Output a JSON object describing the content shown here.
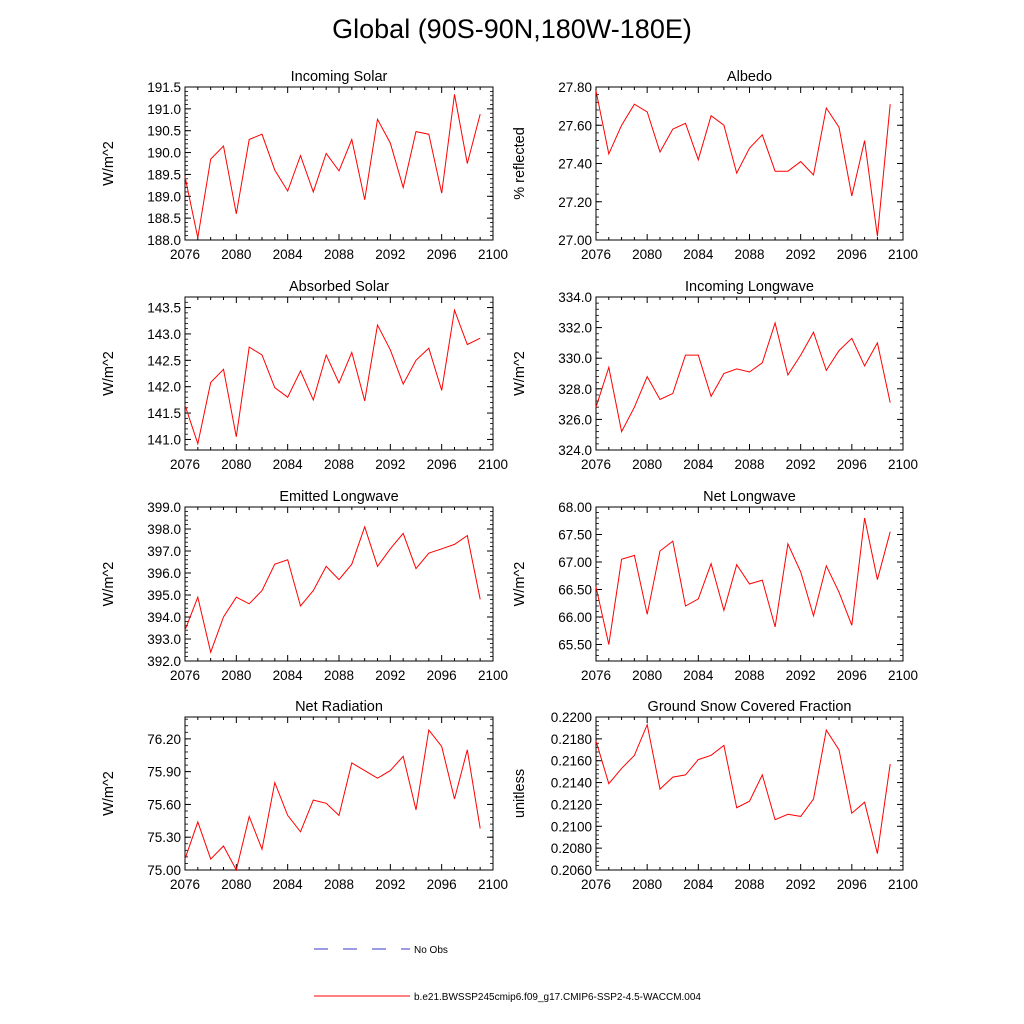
{
  "figure_title": "Global (90S-90N,180W-180E)",
  "legend": {
    "obs_label": "No Obs",
    "obs_color": "#3a3acb",
    "model_label": "b.e21.BWSSP245cmip6.f09_g17.CMIP6-SSP2-4.5-WACCM.004",
    "model_color": "#ff0000"
  },
  "chart_data": [
    {
      "type": "line",
      "title": "Incoming Solar",
      "xlabel": "",
      "ylabel": "W/m^2",
      "xlim": [
        2076,
        2100
      ],
      "ylim": [
        188.0,
        191.5
      ],
      "xticks": [
        2076,
        2080,
        2084,
        2088,
        2092,
        2096,
        2100
      ],
      "yticks": [
        188.0,
        188.5,
        189.0,
        189.5,
        190.0,
        190.5,
        191.0,
        191.5
      ],
      "ytick_labels": [
        "188.0",
        "188.5",
        "189.0",
        "189.5",
        "190.0",
        "190.5",
        "191.0",
        "191.5"
      ],
      "x": [
        2076,
        2077,
        2078,
        2079,
        2080,
        2081,
        2082,
        2083,
        2084,
        2085,
        2086,
        2087,
        2088,
        2089,
        2090,
        2091,
        2092,
        2093,
        2094,
        2095,
        2096,
        2097,
        2098,
        2099
      ],
      "series": [
        {
          "name": "b.e21.BWSSP245cmip6.f09_g17.CMIP6-SSP2-4.5-WACCM.004",
          "color": "#ff0000",
          "values": [
            189.45,
            188.05,
            189.85,
            190.15,
            188.6,
            190.3,
            190.42,
            189.6,
            189.12,
            189.93,
            189.1,
            189.98,
            189.58,
            190.3,
            188.92,
            190.76,
            190.22,
            189.2,
            190.48,
            190.42,
            189.07,
            191.33,
            189.75,
            190.88
          ]
        }
      ]
    },
    {
      "type": "line",
      "title": "Albedo",
      "xlabel": "",
      "ylabel": "% reflected",
      "xlim": [
        2076,
        2100
      ],
      "ylim": [
        27.0,
        27.8
      ],
      "xticks": [
        2076,
        2080,
        2084,
        2088,
        2092,
        2096,
        2100
      ],
      "yticks": [
        27.0,
        27.2,
        27.4,
        27.6,
        27.8
      ],
      "ytick_labels": [
        "27.00",
        "27.20",
        "27.40",
        "27.60",
        "27.80"
      ],
      "x": [
        2076,
        2077,
        2078,
        2079,
        2080,
        2081,
        2082,
        2083,
        2084,
        2085,
        2086,
        2087,
        2088,
        2089,
        2090,
        2091,
        2092,
        2093,
        2094,
        2095,
        2096,
        2097,
        2098,
        2099
      ],
      "series": [
        {
          "name": "b.e21.BWSSP245cmip6.f09_g17.CMIP6-SSP2-4.5-WACCM.004",
          "color": "#ff0000",
          "values": [
            27.78,
            27.45,
            27.6,
            27.71,
            27.67,
            27.46,
            27.58,
            27.61,
            27.42,
            27.65,
            27.6,
            27.35,
            27.48,
            27.55,
            27.36,
            27.36,
            27.41,
            27.34,
            27.69,
            27.59,
            27.23,
            27.52,
            27.02,
            27.71
          ]
        }
      ]
    },
    {
      "type": "line",
      "title": "Absorbed Solar",
      "xlabel": "",
      "ylabel": "W/m^2",
      "xlim": [
        2076,
        2100
      ],
      "ylim": [
        140.8,
        143.7
      ],
      "xticks": [
        2076,
        2080,
        2084,
        2088,
        2092,
        2096,
        2100
      ],
      "yticks": [
        141.0,
        141.5,
        142.0,
        142.5,
        143.0,
        143.5
      ],
      "ytick_labels": [
        "141.0",
        "141.5",
        "142.0",
        "142.5",
        "143.0",
        "143.5"
      ],
      "x": [
        2076,
        2077,
        2078,
        2079,
        2080,
        2081,
        2082,
        2083,
        2084,
        2085,
        2086,
        2087,
        2088,
        2089,
        2090,
        2091,
        2092,
        2093,
        2094,
        2095,
        2096,
        2097,
        2098,
        2099
      ],
      "series": [
        {
          "name": "b.e21.BWSSP245cmip6.f09_g17.CMIP6-SSP2-4.5-WACCM.004",
          "color": "#ff0000",
          "values": [
            141.65,
            140.92,
            142.08,
            142.33,
            141.05,
            142.75,
            142.6,
            141.98,
            141.8,
            142.3,
            141.75,
            142.6,
            142.07,
            142.65,
            141.73,
            143.17,
            142.7,
            142.05,
            142.5,
            142.73,
            141.93,
            143.45,
            142.8,
            142.92
          ]
        }
      ]
    },
    {
      "type": "line",
      "title": "Incoming Longwave",
      "xlabel": "",
      "ylabel": "W/m^2",
      "xlim": [
        2076,
        2100
      ],
      "ylim": [
        324.0,
        334.0
      ],
      "xticks": [
        2076,
        2080,
        2084,
        2088,
        2092,
        2096,
        2100
      ],
      "yticks": [
        324.0,
        326.0,
        328.0,
        330.0,
        332.0,
        334.0
      ],
      "ytick_labels": [
        "324.0",
        "326.0",
        "328.0",
        "330.0",
        "332.0",
        "334.0"
      ],
      "x": [
        2076,
        2077,
        2078,
        2079,
        2080,
        2081,
        2082,
        2083,
        2084,
        2085,
        2086,
        2087,
        2088,
        2089,
        2090,
        2091,
        2092,
        2093,
        2094,
        2095,
        2096,
        2097,
        2098,
        2099
      ],
      "series": [
        {
          "name": "b.e21.BWSSP245cmip6.f09_g17.CMIP6-SSP2-4.5-WACCM.004",
          "color": "#ff0000",
          "values": [
            326.8,
            329.4,
            325.2,
            326.8,
            328.8,
            327.3,
            327.7,
            330.2,
            330.2,
            327.5,
            329.0,
            329.3,
            329.1,
            329.7,
            332.3,
            328.9,
            330.2,
            331.7,
            329.2,
            330.5,
            331.3,
            329.5,
            331.0,
            327.1
          ]
        }
      ]
    },
    {
      "type": "line",
      "title": "Emitted Longwave",
      "xlabel": "",
      "ylabel": "W/m^2",
      "xlim": [
        2076,
        2100
      ],
      "ylim": [
        392.0,
        399.0
      ],
      "xticks": [
        2076,
        2080,
        2084,
        2088,
        2092,
        2096,
        2100
      ],
      "yticks": [
        392.0,
        393.0,
        394.0,
        395.0,
        396.0,
        397.0,
        398.0,
        399.0
      ],
      "ytick_labels": [
        "392.0",
        "393.0",
        "394.0",
        "395.0",
        "396.0",
        "397.0",
        "398.0",
        "399.0"
      ],
      "x": [
        2076,
        2077,
        2078,
        2079,
        2080,
        2081,
        2082,
        2083,
        2084,
        2085,
        2086,
        2087,
        2088,
        2089,
        2090,
        2091,
        2092,
        2093,
        2094,
        2095,
        2096,
        2097,
        2098,
        2099
      ],
      "series": [
        {
          "name": "b.e21.BWSSP245cmip6.f09_g17.CMIP6-SSP2-4.5-WACCM.004",
          "color": "#ff0000",
          "values": [
            393.4,
            394.9,
            392.4,
            394.0,
            394.9,
            394.6,
            395.2,
            396.4,
            396.6,
            394.5,
            395.2,
            396.3,
            395.7,
            396.4,
            398.1,
            396.3,
            397.1,
            397.8,
            396.2,
            396.9,
            397.1,
            397.3,
            397.7,
            394.8
          ]
        }
      ]
    },
    {
      "type": "line",
      "title": "Net Longwave",
      "xlabel": "",
      "ylabel": "W/m^2",
      "xlim": [
        2076,
        2100
      ],
      "ylim": [
        65.2,
        68.0
      ],
      "xticks": [
        2076,
        2080,
        2084,
        2088,
        2092,
        2096,
        2100
      ],
      "yticks": [
        65.5,
        66.0,
        66.5,
        67.0,
        67.5,
        68.0
      ],
      "ytick_labels": [
        "65.50",
        "66.00",
        "66.50",
        "67.00",
        "67.50",
        "68.00"
      ],
      "x": [
        2076,
        2077,
        2078,
        2079,
        2080,
        2081,
        2082,
        2083,
        2084,
        2085,
        2086,
        2087,
        2088,
        2089,
        2090,
        2091,
        2092,
        2093,
        2094,
        2095,
        2096,
        2097,
        2098,
        2099
      ],
      "series": [
        {
          "name": "b.e21.BWSSP245cmip6.f09_g17.CMIP6-SSP2-4.5-WACCM.004",
          "color": "#ff0000",
          "values": [
            66.55,
            65.5,
            67.05,
            67.12,
            66.05,
            67.2,
            67.38,
            66.2,
            66.33,
            66.97,
            66.12,
            66.95,
            66.6,
            66.67,
            65.82,
            67.33,
            66.82,
            66.02,
            66.93,
            66.45,
            65.85,
            67.8,
            66.68,
            67.55
          ]
        }
      ]
    },
    {
      "type": "line",
      "title": "Net Radiation",
      "xlabel": "",
      "ylabel": "W/m^2",
      "xlim": [
        2076,
        2100
      ],
      "ylim": [
        75.0,
        76.4
      ],
      "xticks": [
        2076,
        2080,
        2084,
        2088,
        2092,
        2096,
        2100
      ],
      "yticks": [
        75.0,
        75.3,
        75.6,
        75.9,
        76.2
      ],
      "ytick_labels": [
        "75.00",
        "75.30",
        "75.60",
        "75.90",
        "76.20"
      ],
      "x": [
        2076,
        2077,
        2078,
        2079,
        2080,
        2081,
        2082,
        2083,
        2084,
        2085,
        2086,
        2087,
        2088,
        2089,
        2090,
        2091,
        2092,
        2093,
        2094,
        2095,
        2096,
        2097,
        2098,
        2099
      ],
      "series": [
        {
          "name": "b.e21.BWSSP245cmip6.f09_g17.CMIP6-SSP2-4.5-WACCM.004",
          "color": "#ff0000",
          "values": [
            75.1,
            75.44,
            75.1,
            75.22,
            75.0,
            75.49,
            75.19,
            75.8,
            75.5,
            75.35,
            75.64,
            75.61,
            75.5,
            75.98,
            75.91,
            75.84,
            75.91,
            76.04,
            75.55,
            76.28,
            76.13,
            75.65,
            76.1,
            75.38
          ]
        }
      ]
    },
    {
      "type": "line",
      "title": "Ground Snow Covered Fraction",
      "xlabel": "",
      "ylabel": "unitless",
      "xlim": [
        2076,
        2100
      ],
      "ylim": [
        0.206,
        0.22
      ],
      "xticks": [
        2076,
        2080,
        2084,
        2088,
        2092,
        2096,
        2100
      ],
      "yticks": [
        0.206,
        0.208,
        0.21,
        0.212,
        0.214,
        0.216,
        0.218,
        0.22
      ],
      "ytick_labels": [
        "0.2060",
        "0.2080",
        "0.2100",
        "0.2120",
        "0.2140",
        "0.2160",
        "0.2180",
        "0.2200"
      ],
      "x": [
        2076,
        2077,
        2078,
        2079,
        2080,
        2081,
        2082,
        2083,
        2084,
        2085,
        2086,
        2087,
        2088,
        2089,
        2090,
        2091,
        2092,
        2093,
        2094,
        2095,
        2096,
        2097,
        2098,
        2099
      ],
      "series": [
        {
          "name": "b.e21.BWSSP245cmip6.f09_g17.CMIP6-SSP2-4.5-WACCM.004",
          "color": "#ff0000",
          "values": [
            0.2178,
            0.2139,
            0.2153,
            0.2165,
            0.2193,
            0.2134,
            0.2145,
            0.2147,
            0.2161,
            0.2165,
            0.2174,
            0.2117,
            0.2123,
            0.2147,
            0.2106,
            0.2111,
            0.2109,
            0.2125,
            0.2188,
            0.217,
            0.2112,
            0.2122,
            0.2075,
            0.2157
          ]
        }
      ]
    }
  ]
}
